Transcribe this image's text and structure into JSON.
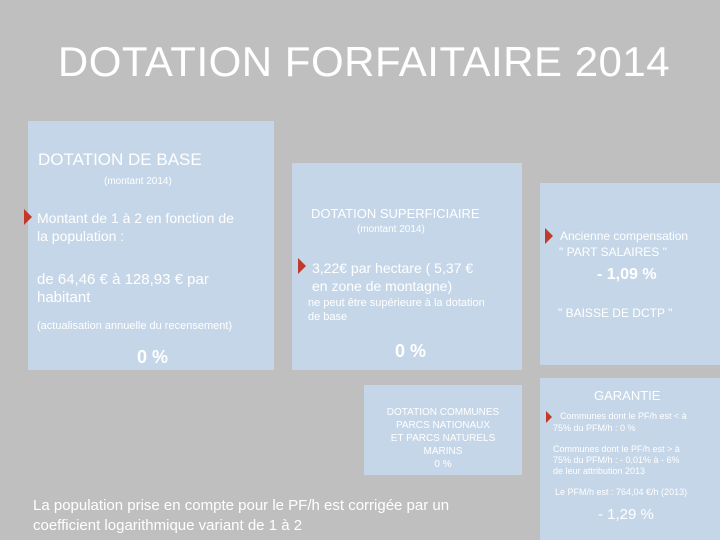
{
  "title": "DOTATION FORFAITAIRE 2014",
  "base": {
    "heading": "DOTATION DE BASE",
    "montant": "(montant 2014)",
    "bullet_line1": "Montant de 1 à 2 en fonction de",
    "bullet_line2": "la population :",
    "range_line1": "de 64,46 € à 128,93 € par",
    "range_line2": "habitant",
    "note": "(actualisation annuelle du recensement)",
    "percent": "0 %"
  },
  "superficiaire": {
    "heading": "DOTATION SUPERFICIAIRE",
    "montant": "(montant 2014)",
    "bullet_line1": "3,22€ par hectare ( 5,37 €",
    "bullet_line2": "en zone de montagne)",
    "note_line1": "ne peut être supérieure à la dotation",
    "note_line2": "de base",
    "percent": "0 %"
  },
  "compensation": {
    "line1": "Ancienne compensation",
    "line2": "\" PART SALAIRES \"",
    "percent": "- 1,09 %",
    "baisse": "\" BAISSE DE DCTP \""
  },
  "parcs": {
    "line1": "DOTATION COMMUNES",
    "line2": "PARCS NATIONAUX",
    "line3": "ET PARCS NATURELS",
    "line4": "MARINS",
    "percent": "0 %"
  },
  "garantie": {
    "heading": "GARANTIE",
    "item1_line1": "Communes dont le PF/h est < à",
    "item1_line2": "75% du PFM/h : 0 %",
    "item2_line1": "Communes dont le PF/h est > à",
    "item2_line2": "75% du PFM/h : - 0,01% à - 6%",
    "item2_line3": "de leur attribution 2013",
    "pfm": "Le PFM/h est : 764,04 €/h (2013)",
    "percent": "- 1,29 %"
  },
  "footnote": {
    "line1": "La population prise en compte pour le PF/h est corrigée par un",
    "line2": "coefficient logarithmique variant de 1 à 2"
  },
  "colors": {
    "background": "#bfbfbf",
    "box": "#c5d6e8",
    "arrow": "#c0392b",
    "text": "#ffffff"
  }
}
